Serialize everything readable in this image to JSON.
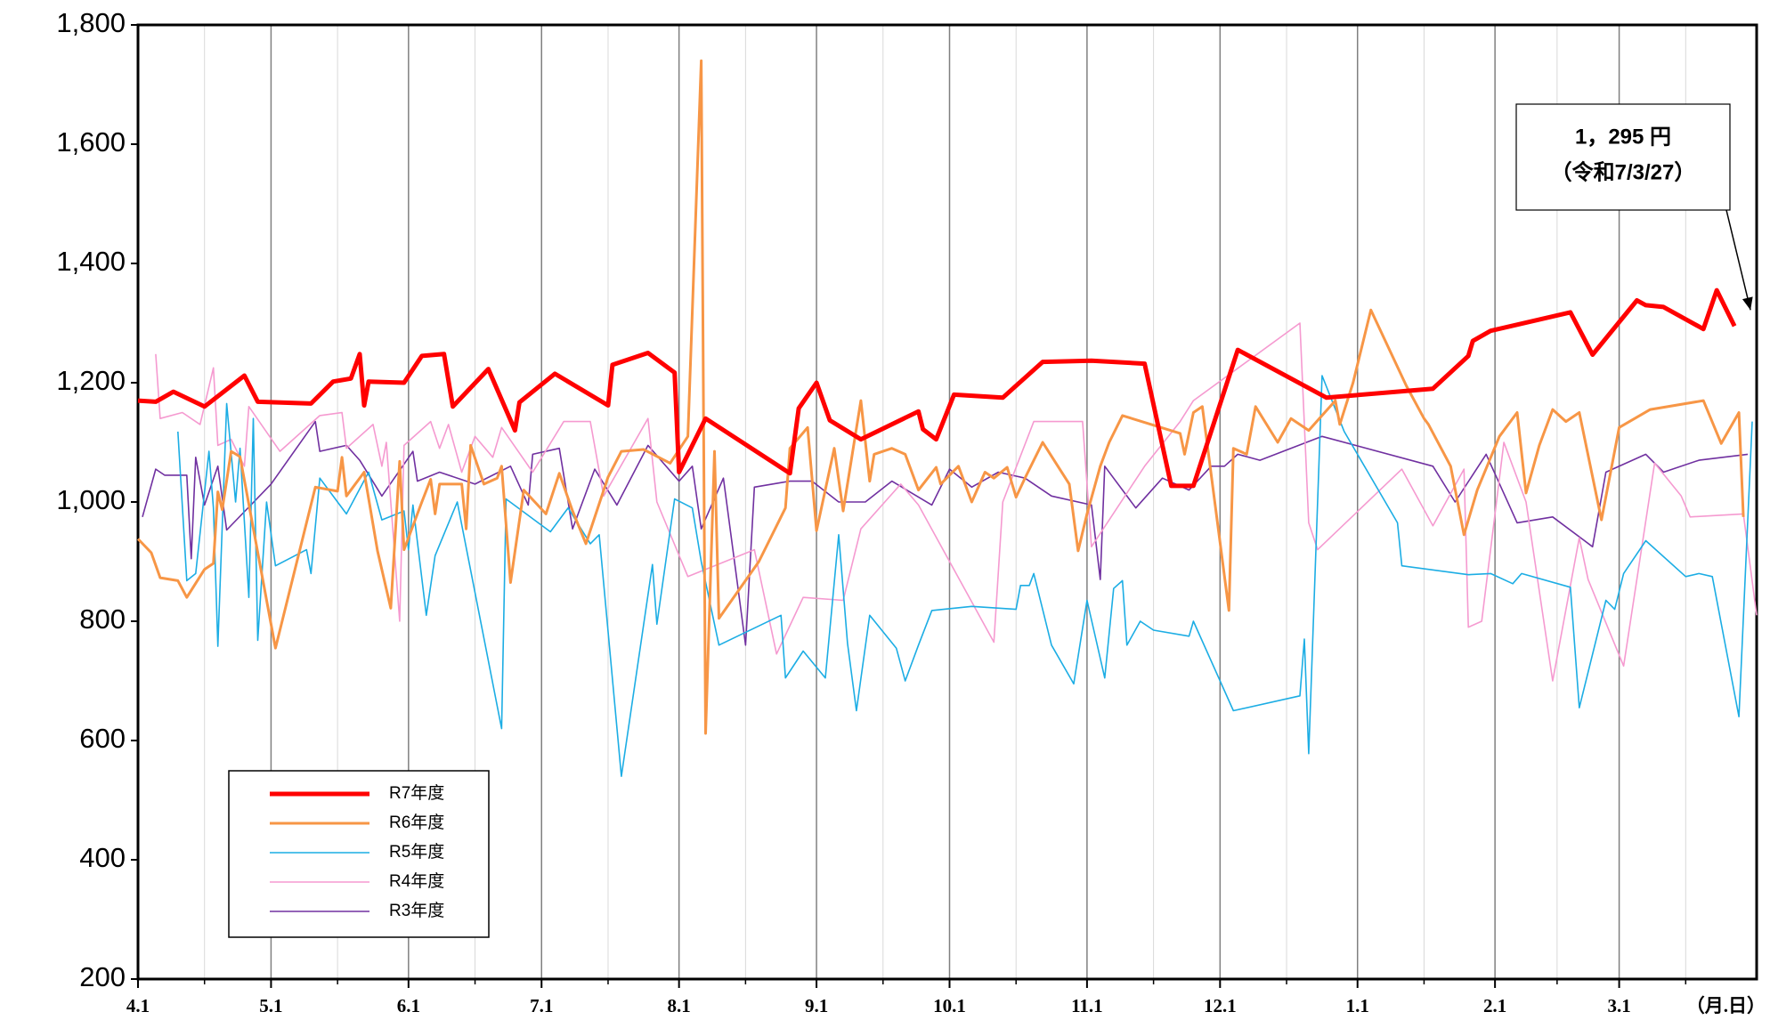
{
  "chart_data": {
    "type": "line",
    "x_label": "（月.日）",
    "xlim": [
      0,
      365
    ],
    "xticks": [
      {
        "value": 0,
        "label": "4.1"
      },
      {
        "value": 30,
        "label": "5.1"
      },
      {
        "value": 61,
        "label": "6.1"
      },
      {
        "value": 91,
        "label": "7.1"
      },
      {
        "value": 122,
        "label": "8.1"
      },
      {
        "value": 153,
        "label": "9.1"
      },
      {
        "value": 183,
        "label": "10.1"
      },
      {
        "value": 214,
        "label": "11.1"
      },
      {
        "value": 244,
        "label": "12.1"
      },
      {
        "value": 275,
        "label": "1.1"
      },
      {
        "value": 306,
        "label": "2.1"
      },
      {
        "value": 334,
        "label": "3.1"
      }
    ],
    "xminor_ticks": [
      15,
      45,
      76,
      106,
      137,
      168,
      198,
      229,
      259,
      290,
      320,
      349
    ],
    "ylim": [
      200,
      1800
    ],
    "yticks": [
      200,
      400,
      600,
      800,
      {
        "value": 1000,
        "label": "1,000"
      },
      {
        "value": 1200,
        "label": "1,200"
      },
      {
        "value": 1400,
        "label": "1,400"
      },
      {
        "value": 1600,
        "label": "1,600"
      },
      {
        "value": 1800,
        "label": "1,800"
      }
    ],
    "grid": true,
    "legend": "lower left",
    "annotation": {
      "lines": [
        "1，295 円",
        "（令和7/3/27）"
      ],
      "x": 360,
      "y": 1295
    },
    "series": [
      {
        "name": "R7年度",
        "color": "#ff0000",
        "line_width": 5,
        "x": [
          0,
          4,
          8,
          15,
          24,
          27,
          39,
          44,
          48,
          50,
          51,
          52,
          60,
          64,
          69,
          71,
          79,
          85,
          86,
          94,
          106,
          107,
          115,
          121,
          122,
          128,
          147,
          149,
          153,
          156,
          163,
          176,
          177,
          180,
          184,
          195,
          204,
          215,
          227,
          233,
          238,
          248,
          268,
          292,
          300,
          301,
          305,
          323,
          328,
          338,
          340,
          344,
          353,
          356,
          360
        ],
        "values": [
          1170,
          1168,
          1185,
          1160,
          1212,
          1168,
          1165,
          1202,
          1207,
          1248,
          1162,
          1202,
          1200,
          1245,
          1248,
          1160,
          1223,
          1120,
          1167,
          1215,
          1162,
          1230,
          1250,
          1217,
          1050,
          1140,
          1048,
          1157,
          1200,
          1137,
          1105,
          1152,
          1122,
          1105,
          1180,
          1175,
          1235,
          1237,
          1232,
          1027,
          1027,
          1255,
          1175,
          1190,
          1245,
          1270,
          1287,
          1318,
          1247,
          1338,
          1330,
          1327,
          1290,
          1355,
          1295
        ]
      },
      {
        "name": "R6年度",
        "color": "#f79646",
        "line_width": 3,
        "x": [
          0,
          3,
          5,
          9,
          11,
          15,
          17,
          18,
          19,
          21,
          23,
          31,
          40,
          45,
          46,
          47,
          51,
          54,
          57,
          59,
          60,
          64,
          66,
          67,
          68,
          73,
          74,
          75,
          78,
          81,
          82,
          84,
          87,
          92,
          95,
          98,
          101,
          106,
          109,
          114,
          120,
          124,
          127,
          128,
          130,
          131,
          140,
          146,
          147,
          151,
          153,
          157,
          159,
          163,
          165,
          166,
          170,
          173,
          176,
          180,
          181,
          185,
          188,
          191,
          193,
          196,
          198,
          200,
          204,
          210,
          212,
          214,
          217,
          219,
          222,
          235,
          236,
          238,
          240,
          246,
          247,
          250,
          252,
          257,
          260,
          264,
          270,
          271,
          274,
          278,
          286,
          290,
          291,
          296,
          299,
          302,
          307,
          311,
          313,
          316,
          319,
          322,
          325,
          330,
          334,
          341,
          353,
          357,
          361,
          362
        ],
        "values": [
          938,
          915,
          873,
          868,
          840,
          887,
          897,
          1017,
          987,
          1085,
          1076,
          755,
          1025,
          1018,
          1075,
          1010,
          1050,
          918,
          822,
          1068,
          920,
          1000,
          1038,
          980,
          1030,
          1030,
          955,
          1095,
          1030,
          1040,
          1060,
          865,
          1020,
          980,
          1048,
          985,
          930,
          1042,
          1085,
          1088,
          1065,
          1110,
          1740,
          612,
          1085,
          805,
          900,
          990,
          1090,
          1125,
          952,
          1090,
          985,
          1170,
          1035,
          1080,
          1090,
          1080,
          1020,
          1058,
          1030,
          1060,
          1000,
          1050,
          1040,
          1058,
          1008,
          1040,
          1100,
          1030,
          918,
          980,
          1060,
          1100,
          1145,
          1115,
          1080,
          1150,
          1160,
          818,
          1090,
          1080,
          1160,
          1100,
          1140,
          1120,
          1170,
          1130,
          1200,
          1322,
          1195,
          1140,
          1130,
          1060,
          945,
          1020,
          1110,
          1150,
          1015,
          1095,
          1155,
          1135,
          1150,
          970,
          1125,
          1155,
          1170,
          1098,
          1150,
          975
        ]
      },
      {
        "name": "R5年度",
        "color": "#1cade4",
        "line_width": 1.6,
        "x": [
          9,
          11,
          13,
          16,
          17,
          18,
          20,
          22,
          23,
          25,
          26,
          27,
          29,
          31,
          38,
          39,
          41,
          47,
          52,
          55,
          60,
          61,
          62,
          65,
          67,
          72,
          82,
          83,
          93,
          97,
          102,
          104,
          109,
          116,
          117,
          121,
          125,
          127,
          131,
          145,
          146,
          150,
          155,
          158,
          160,
          162,
          165,
          171,
          173,
          176,
          179,
          188,
          198,
          199,
          201,
          202,
          206,
          211,
          214,
          218,
          220,
          222,
          223,
          226,
          229,
          237,
          238,
          247,
          262,
          263,
          264,
          267,
          272,
          284,
          285,
          300,
          305,
          310,
          312,
          323,
          325,
          331,
          333,
          335,
          340,
          349,
          352,
          355,
          361,
          364
        ],
        "values": [
          1118,
          868,
          880,
          1085,
          990,
          758,
          1165,
          1000,
          1090,
          840,
          1140,
          768,
          1000,
          893,
          920,
          880,
          1040,
          980,
          1050,
          970,
          985,
          920,
          995,
          810,
          910,
          1000,
          620,
          1005,
          950,
          990,
          930,
          945,
          540,
          895,
          795,
          1005,
          990,
          900,
          760,
          810,
          705,
          750,
          705,
          945,
          763,
          650,
          810,
          755,
          700,
          760,
          818,
          825,
          820,
          860,
          860,
          880,
          760,
          695,
          835,
          705,
          855,
          868,
          760,
          800,
          785,
          775,
          800,
          650,
          675,
          770,
          578,
          1212,
          1118,
          965,
          893,
          878,
          880,
          863,
          880,
          857,
          655,
          835,
          820,
          880,
          935,
          875,
          880,
          875,
          640,
          1135
        ]
      },
      {
        "name": "R4年度",
        "color": "#f59ad0",
        "line_width": 1.6,
        "x": [
          4,
          5,
          10,
          14,
          17,
          18,
          21,
          24,
          25,
          32,
          41,
          46,
          47,
          53,
          55,
          56,
          59,
          60,
          66,
          68,
          70,
          73,
          76,
          80,
          82,
          89,
          96,
          102,
          105,
          115,
          117,
          124,
          139,
          144,
          150,
          159,
          163,
          172,
          176,
          193,
          195,
          202,
          213,
          215,
          227,
          235,
          238,
          262,
          264,
          266,
          285,
          292,
          299,
          300,
          303,
          308,
          313,
          319,
          325,
          327,
          335,
          342,
          348,
          350,
          362,
          365
        ],
        "values": [
          1248,
          1140,
          1150,
          1130,
          1225,
          1095,
          1105,
          1060,
          1160,
          1085,
          1145,
          1150,
          1090,
          1130,
          1060,
          1100,
          800,
          1095,
          1135,
          1090,
          1130,
          1050,
          1110,
          1075,
          1125,
          1050,
          1135,
          1135,
          1010,
          1140,
          1000,
          875,
          920,
          745,
          840,
          835,
          955,
          1030,
          995,
          765,
          1000,
          1135,
          1135,
          925,
          1060,
          1135,
          1170,
          1300,
          965,
          920,
          1055,
          960,
          1055,
          790,
          800,
          1100,
          1000,
          700,
          940,
          870,
          725,
          1065,
          1010,
          975,
          980,
          810
        ]
      },
      {
        "name": "R3年度",
        "color": "#7030a0",
        "line_width": 1.6,
        "x": [
          1,
          4,
          6,
          11,
          12,
          13,
          15,
          18,
          20,
          30,
          40,
          41,
          47,
          50,
          55,
          62,
          63,
          68,
          76,
          84,
          88,
          89,
          95,
          98,
          103,
          108,
          115,
          122,
          125,
          127,
          132,
          137,
          139,
          147,
          152,
          158,
          164,
          170,
          179,
          183,
          188,
          194,
          200,
          206,
          215,
          217,
          218,
          225,
          231,
          237,
          242,
          245,
          248,
          253,
          267,
          292,
          297,
          304,
          311,
          319,
          328,
          331,
          340,
          344,
          352,
          363
        ],
        "values": [
          975,
          1055,
          1045,
          1045,
          905,
          1075,
          995,
          1060,
          953,
          1030,
          1135,
          1085,
          1095,
          1070,
          1010,
          1085,
          1035,
          1050,
          1030,
          1060,
          995,
          1080,
          1090,
          955,
          1055,
          995,
          1095,
          1035,
          1060,
          955,
          1040,
          760,
          1025,
          1035,
          1035,
          1000,
          1000,
          1035,
          995,
          1055,
          1025,
          1050,
          1040,
          1010,
          995,
          870,
          1060,
          990,
          1040,
          1020,
          1060,
          1060,
          1080,
          1070,
          1110,
          1060,
          1000,
          1080,
          965,
          975,
          925,
          1050,
          1080,
          1050,
          1070,
          1080
        ]
      }
    ]
  }
}
